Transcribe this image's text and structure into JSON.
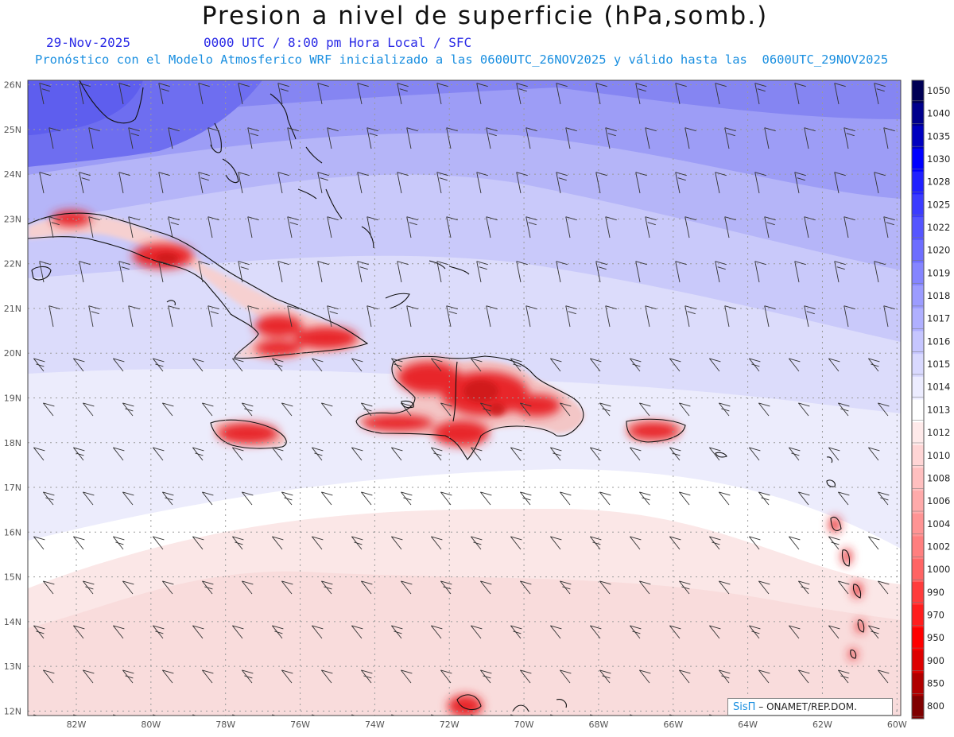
{
  "title": "Presion a nivel de superficie (hPa,somb.)",
  "date": "29-Nov-2025",
  "time_line": "0000 UTC / 8:00 pm Hora Local / SFC",
  "description": "Pronóstico con el Modelo Atmosferico WRF inicializado a las 0600UTC_26NOV2025 y válido hasta las  0600UTC_29NOV2025",
  "credit": {
    "logo": "SisΠ",
    "org": "– ONAMET/REP.DOM."
  },
  "map": {
    "lon_range": [
      -83.3,
      -59.9
    ],
    "lat_range": [
      11.9,
      26.1
    ],
    "lon_labels": [
      "82W",
      "80W",
      "78W",
      "76W",
      "74W",
      "72W",
      "70W",
      "68W",
      "66W",
      "64W",
      "62W",
      "60W"
    ],
    "lat_labels": [
      "26N",
      "25N",
      "24N",
      "23N",
      "22N",
      "21N",
      "20N",
      "19N",
      "18N",
      "17N",
      "16N",
      "15N",
      "14N",
      "13N",
      "12N"
    ],
    "grid": "dotted"
  },
  "colorbar": {
    "levels": [
      "1050",
      "1040",
      "1035",
      "1030",
      "1028",
      "1025",
      "1022",
      "1020",
      "1019",
      "1018",
      "1017",
      "1016",
      "1015",
      "1014",
      "1013",
      "1012",
      "1010",
      "1008",
      "1006",
      "1004",
      "1002",
      "1000",
      "990",
      "970",
      "950",
      "900",
      "850",
      "800"
    ],
    "colors": [
      "#000055",
      "#00008c",
      "#0000bf",
      "#0000ff",
      "#2020ff",
      "#3c3cff",
      "#5555ff",
      "#6e6eff",
      "#8585ff",
      "#9c9cff",
      "#b0b0ff",
      "#c6c6ff",
      "#d9d9ff",
      "#ececff",
      "#ffffff",
      "#ffeaea",
      "#ffd5d5",
      "#ffbfbf",
      "#ffaaaa",
      "#ff9494",
      "#ff7f7f",
      "#ff6464",
      "#ff3c3c",
      "#ff1e1e",
      "#ff0000",
      "#dd0000",
      "#b00000",
      "#800000"
    ]
  },
  "colors": {
    "land_red": "#e8282c",
    "coast": "#111111",
    "grid": "#9a9a9a"
  }
}
